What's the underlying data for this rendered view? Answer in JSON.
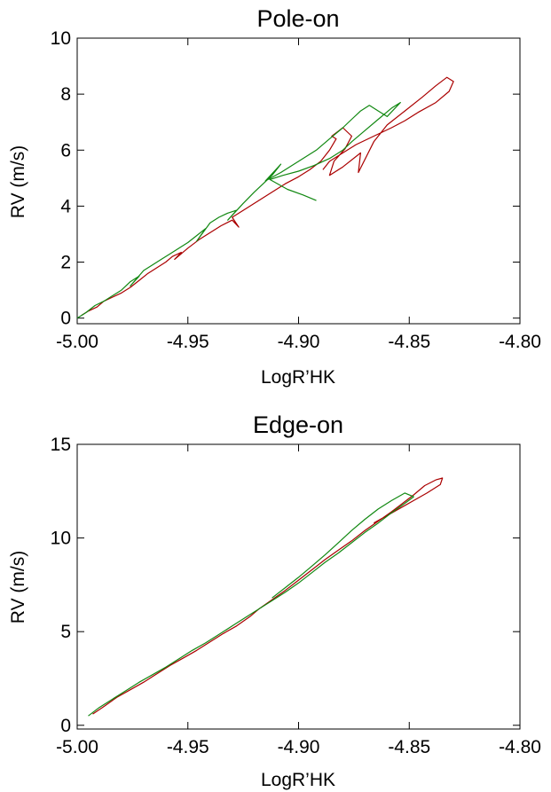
{
  "chart_data": [
    {
      "type": "line",
      "title": "Pole-on",
      "xlabel": "LogR’HK",
      "ylabel": "RV (m/s)",
      "xlim": [
        -5.0,
        -4.8
      ],
      "ylim": [
        -0.2,
        10
      ],
      "xticks": [
        -5.0,
        -4.95,
        -4.9,
        -4.85,
        -4.8
      ],
      "xtick_labels": [
        "-5.00",
        "-4.95",
        "-4.90",
        "-4.85",
        "-4.80"
      ],
      "yticks": [
        0,
        2,
        4,
        6,
        8,
        10
      ],
      "ytick_labels": [
        "0",
        "2",
        "4",
        "6",
        "8",
        "10"
      ],
      "grid": false,
      "series": [
        {
          "color": "#aa0000",
          "x": [
            -4.998,
            -4.995,
            -4.991,
            -4.988,
            -4.984,
            -4.98,
            -4.976,
            -4.972,
            -4.968,
            -4.964,
            -4.96,
            -4.957,
            -4.953,
            -4.956,
            -4.95,
            -4.945,
            -4.94,
            -4.935,
            -4.93,
            -4.927,
            -4.93,
            -4.924,
            -4.918,
            -4.912,
            -4.906,
            -4.9,
            -4.895,
            -4.89,
            -4.886,
            -4.883,
            -4.885,
            -4.88,
            -4.876,
            -4.879,
            -4.884,
            -4.886,
            -4.88,
            -4.872,
            -4.873,
            -4.866,
            -4.86,
            -4.852,
            -4.844,
            -4.838,
            -4.833,
            -4.83,
            -4.832,
            -4.838,
            -4.846,
            -4.852,
            -4.858,
            -4.866,
            -4.874,
            -4.88,
            -4.886,
            -4.889
          ],
          "y": [
            0.1,
            0.25,
            0.4,
            0.6,
            0.75,
            0.9,
            1.1,
            1.35,
            1.6,
            1.8,
            2.0,
            2.2,
            2.35,
            2.1,
            2.5,
            2.8,
            3.05,
            3.3,
            3.5,
            3.25,
            3.6,
            3.9,
            4.2,
            4.5,
            4.8,
            5.05,
            5.3,
            5.6,
            6.0,
            6.4,
            6.5,
            6.8,
            6.5,
            6.05,
            5.6,
            5.1,
            5.4,
            5.9,
            5.2,
            6.3,
            6.9,
            7.4,
            7.9,
            8.3,
            8.6,
            8.45,
            8.1,
            7.7,
            7.35,
            7.05,
            6.8,
            6.5,
            6.2,
            5.9,
            5.6,
            5.3
          ]
        },
        {
          "color": "#118811",
          "x": [
            -5.0,
            -4.996,
            -4.992,
            -4.988,
            -4.984,
            -4.98,
            -4.976,
            -4.972,
            -4.976,
            -4.97,
            -4.966,
            -4.962,
            -4.958,
            -4.954,
            -4.95,
            -4.946,
            -4.942,
            -4.946,
            -4.94,
            -4.936,
            -4.932,
            -4.928,
            -4.932,
            -4.925,
            -4.92,
            -4.916,
            -4.912,
            -4.908,
            -4.915,
            -4.908,
            -4.9,
            -4.892,
            -4.886,
            -4.88,
            -4.876,
            -4.872,
            -4.868,
            -4.864,
            -4.86,
            -4.854,
            -4.858,
            -4.864,
            -4.87,
            -4.876,
            -4.88,
            -4.886,
            -4.893,
            -4.9,
            -4.907,
            -4.913,
            -4.905,
            -4.898,
            -4.892
          ],
          "y": [
            0.0,
            0.2,
            0.45,
            0.6,
            0.8,
            1.0,
            1.3,
            1.5,
            1.15,
            1.7,
            1.9,
            2.1,
            2.3,
            2.5,
            2.7,
            2.95,
            3.2,
            2.75,
            3.4,
            3.6,
            3.75,
            3.85,
            3.5,
            4.1,
            4.5,
            4.8,
            5.1,
            5.5,
            4.9,
            5.2,
            5.6,
            6.0,
            6.4,
            6.8,
            7.1,
            7.4,
            7.6,
            7.4,
            7.2,
            7.7,
            7.5,
            7.1,
            6.7,
            6.3,
            6.0,
            5.7,
            5.45,
            5.25,
            5.1,
            4.95,
            4.6,
            4.4,
            4.2
          ]
        }
      ]
    },
    {
      "type": "line",
      "title": "Edge-on",
      "xlabel": "LogR’HK",
      "ylabel": "RV (m/s)",
      "xlim": [
        -5.0,
        -4.8
      ],
      "ylim": [
        -0.2,
        15
      ],
      "xticks": [
        -5.0,
        -4.95,
        -4.9,
        -4.85,
        -4.8
      ],
      "xtick_labels": [
        "-5.00",
        "-4.95",
        "-4.90",
        "-4.85",
        "-4.80"
      ],
      "yticks": [
        0,
        5,
        10,
        15
      ],
      "ytick_labels": [
        "0",
        "5",
        "10",
        "15"
      ],
      "grid": false,
      "series": [
        {
          "color": "#aa0000",
          "x": [
            -4.993,
            -4.988,
            -4.982,
            -4.976,
            -4.97,
            -4.964,
            -4.958,
            -4.952,
            -4.946,
            -4.94,
            -4.934,
            -4.928,
            -4.922,
            -4.918,
            -4.912,
            -4.906,
            -4.9,
            -4.894,
            -4.888,
            -4.882,
            -4.876,
            -4.87,
            -4.864,
            -4.858,
            -4.853,
            -4.848,
            -4.843,
            -4.838,
            -4.835,
            -4.836,
            -4.842,
            -4.848,
            -4.854,
            -4.86,
            -4.866
          ],
          "y": [
            0.6,
            1.0,
            1.5,
            1.9,
            2.3,
            2.75,
            3.2,
            3.6,
            4.0,
            4.45,
            4.9,
            5.3,
            5.8,
            6.2,
            6.7,
            7.2,
            7.75,
            8.3,
            8.85,
            9.35,
            9.85,
            10.4,
            10.9,
            11.4,
            11.85,
            12.3,
            12.8,
            13.1,
            13.2,
            12.85,
            12.4,
            12.0,
            11.6,
            11.2,
            10.8
          ]
        },
        {
          "color": "#118811",
          "x": [
            -4.995,
            -4.99,
            -4.984,
            -4.978,
            -4.972,
            -4.966,
            -4.96,
            -4.954,
            -4.948,
            -4.942,
            -4.936,
            -4.93,
            -4.924,
            -4.918,
            -4.912,
            -4.906,
            -4.9,
            -4.894,
            -4.888,
            -4.882,
            -4.876,
            -4.87,
            -4.864,
            -4.858,
            -4.852,
            -4.848,
            -4.852,
            -4.858,
            -4.864,
            -4.87,
            -4.876,
            -4.882,
            -4.888,
            -4.894,
            -4.9,
            -4.906,
            -4.912
          ],
          "y": [
            0.5,
            0.95,
            1.4,
            1.85,
            2.3,
            2.7,
            3.1,
            3.55,
            4.0,
            4.4,
            4.85,
            5.3,
            5.75,
            6.2,
            6.65,
            7.1,
            7.6,
            8.15,
            8.7,
            9.2,
            9.75,
            10.3,
            10.8,
            11.35,
            11.85,
            12.2,
            12.4,
            12.0,
            11.55,
            11.0,
            10.4,
            9.75,
            9.1,
            8.5,
            7.9,
            7.35,
            6.8
          ]
        }
      ]
    }
  ]
}
